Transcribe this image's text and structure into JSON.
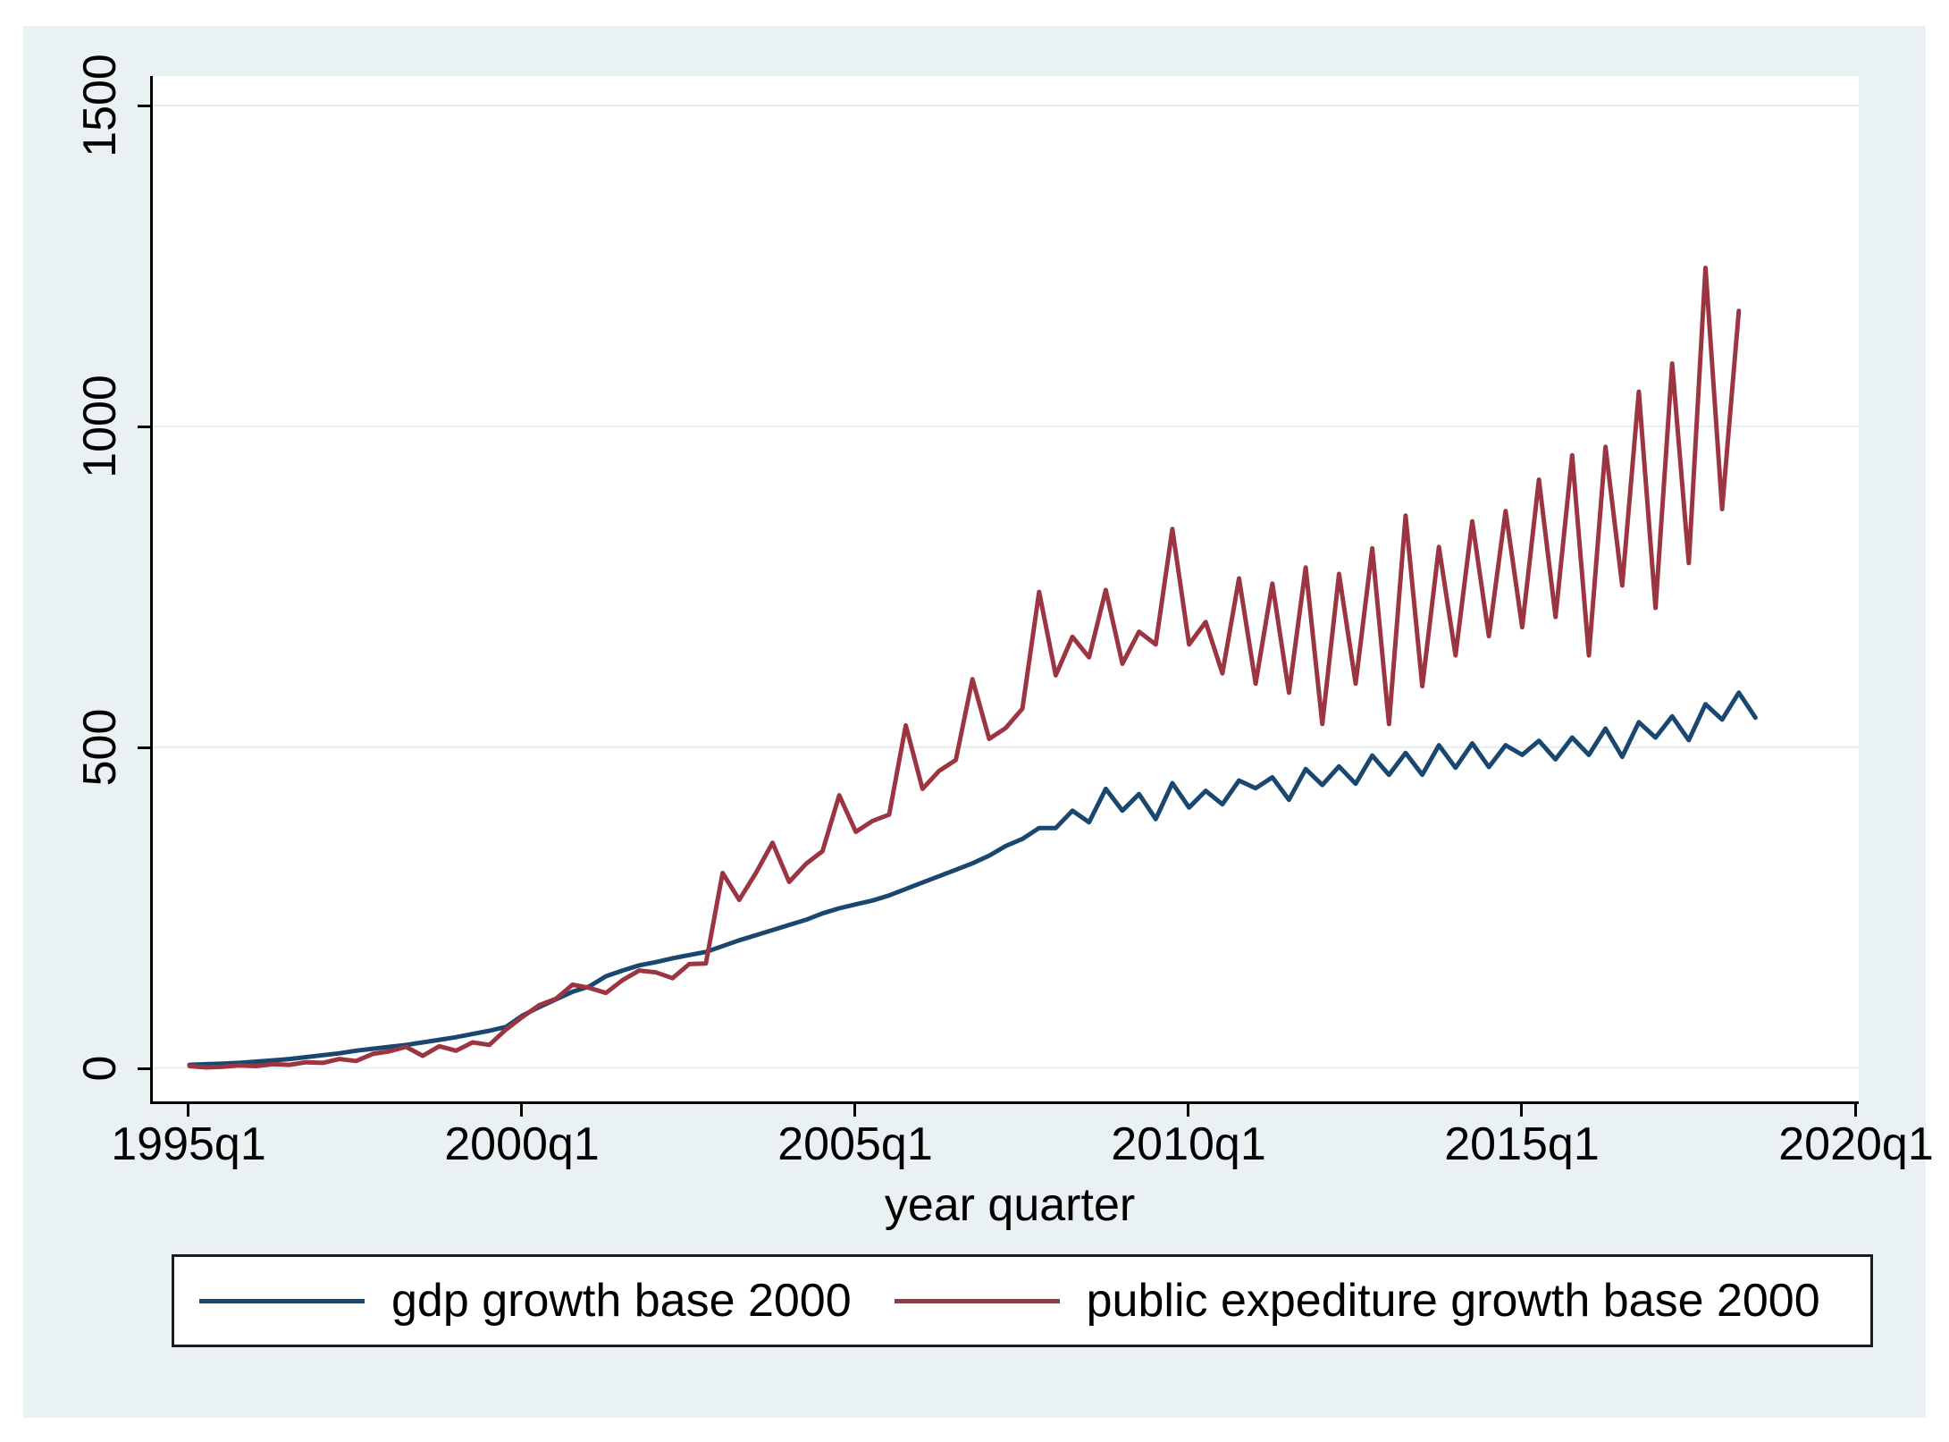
{
  "colors": {
    "background": "#eaf1f2",
    "plot_background": "#ffffff",
    "grid": "#e6edf0",
    "axis": "#000000",
    "gdp_line": "#1a476f",
    "expenditure_line": "#9c3542"
  },
  "figure": {
    "x_axis": {
      "title": "year quarter",
      "tick_labels": [
        "1995q1",
        "2000q1",
        "2005q1",
        "2010q1",
        "2015q1",
        "2020q1"
      ]
    },
    "y_axis": {
      "tick_labels": [
        "1500",
        "1000",
        "500",
        "0"
      ]
    }
  },
  "legend": {
    "items": [
      {
        "label": "gdp growth base 2000",
        "color": "#1a476f"
      },
      {
        "label": "public expediture growth base 2000",
        "color": "#9c3542"
      }
    ]
  },
  "chart_data": {
    "type": "line",
    "title": "",
    "xlabel": "year quarter",
    "ylabel": "",
    "x_start_year": 1995,
    "x_step_years": 0.25,
    "x_unit": "quarter",
    "xlim": [
      1994.45,
      2020.05
    ],
    "ylim": [
      -52,
      1546
    ],
    "yticks": [
      0,
      500,
      1000,
      1500
    ],
    "xticks": [
      {
        "year": 1995,
        "label": "1995q1"
      },
      {
        "year": 2000,
        "label": "2000q1"
      },
      {
        "year": 2005,
        "label": "2005q1"
      },
      {
        "year": 2010,
        "label": "2010q1"
      },
      {
        "year": 2015,
        "label": "2015q1"
      },
      {
        "year": 2020,
        "label": "2020q1"
      }
    ],
    "grid": "horizontal",
    "legend_position": "bottom",
    "series": [
      {
        "name": "gdp growth base 2000",
        "color": "#1a476f",
        "first_quarter": "1995q1",
        "last_quarter": "2018q3",
        "values": [
          5,
          6,
          7,
          8,
          10,
          12,
          14,
          17,
          20,
          23,
          27,
          30,
          33,
          36,
          40,
          44,
          48,
          53,
          58,
          64,
          82,
          95,
          107,
          119,
          127,
          143,
          152,
          160,
          165,
          171,
          176,
          181,
          190,
          199,
          207,
          215,
          223,
          231,
          241,
          249,
          255,
          261,
          269,
          279,
          289,
          299,
          309,
          319,
          331,
          346,
          357,
          374,
          374,
          401,
          383,
          435,
          401,
          427,
          388,
          444,
          406,
          432,
          411,
          448,
          436,
          453,
          418,
          466,
          441,
          470,
          443,
          487,
          457,
          491,
          457,
          503,
          468,
          506,
          469,
          503,
          488,
          510,
          481,
          515,
          488,
          529,
          485,
          539,
          515,
          548,
          511,
          567,
          543,
          585,
          546
        ]
      },
      {
        "name": "public expediture growth base 2000",
        "color": "#9c3542",
        "first_quarter": "1995q1",
        "last_quarter": "2018q2",
        "values": [
          3,
          1,
          2,
          4,
          3,
          6,
          5,
          9,
          8,
          14,
          11,
          22,
          26,
          33,
          19,
          34,
          27,
          40,
          36,
          60,
          80,
          98,
          108,
          130,
          125,
          117,
          137,
          152,
          149,
          140,
          162,
          163,
          304,
          262,
          304,
          351,
          290,
          318,
          338,
          425,
          368,
          385,
          395,
          534,
          435,
          463,
          480,
          606,
          513,
          530,
          560,
          742,
          612,
          672,
          640,
          745,
          630,
          680,
          660,
          840,
          660,
          695,
          615,
          763,
          599,
          755,
          585,
          780,
          536,
          770,
          599,
          810,
          536,
          861,
          595,
          812,
          643,
          852,
          673,
          868,
          687,
          917,
          703,
          955,
          643,
          968,
          752,
          1054,
          717,
          1098,
          787,
          1247,
          871,
          1180
        ]
      }
    ]
  }
}
